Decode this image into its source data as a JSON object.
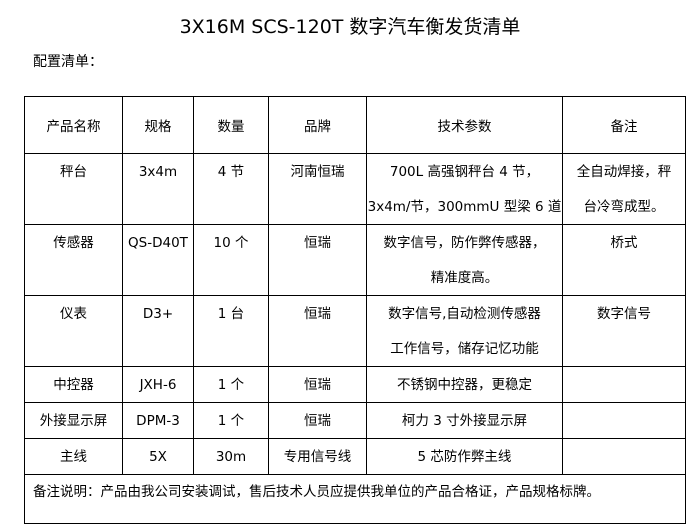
{
  "title": "3X16M SCS-120T 数字汽车衡发货清单",
  "subtitle": "配置清单：",
  "table": {
    "headers": [
      "产品名称",
      "规格",
      "数量",
      "品牌",
      "技术参数",
      "备注"
    ],
    "rows": [
      {
        "name": "秤台",
        "spec": "3x4m",
        "qty": "4 节",
        "brand": "河南恒瑞",
        "tech": [
          "700L 高强钢秤台 4 节，",
          "3x4m/节，300mmU 型梁 6 道"
        ],
        "remark": [
          "全自动焊接，秤",
          "台冷弯成型。"
        ]
      },
      {
        "name": "传感器",
        "spec": "QS-D40T",
        "qty": "10 个",
        "brand": "恒瑞",
        "tech": [
          "数字信号，防作弊传感器，",
          "精准度高。"
        ],
        "remark": [
          "桥式"
        ]
      },
      {
        "name": "仪表",
        "spec": "D3+",
        "qty": "1 台",
        "brand": "恒瑞",
        "tech": [
          "数字信号,自动检测传感器",
          "工作信号，储存记忆功能"
        ],
        "remark": [
          "数字信号"
        ]
      },
      {
        "name": "中控器",
        "spec": "JXH-6",
        "qty": "1 个",
        "brand": "恒瑞",
        "tech": [
          "不锈钢中控器，更稳定"
        ],
        "remark": [
          ""
        ]
      },
      {
        "name": "外接显示屏",
        "spec": "DPM-3",
        "qty": "1 个",
        "brand": "恒瑞",
        "tech": [
          "柯力 3 寸外接显示屏"
        ],
        "remark": [
          ""
        ]
      },
      {
        "name": "主线",
        "spec": "5X",
        "qty": "30m",
        "brand": "专用信号线",
        "tech": [
          "5 芯防作弊主线"
        ],
        "remark": [
          ""
        ]
      }
    ],
    "note": "备注说明：产品由我公司安装调试，售后技术人员应提供我单位的产品合格证，产品规格标牌。"
  }
}
